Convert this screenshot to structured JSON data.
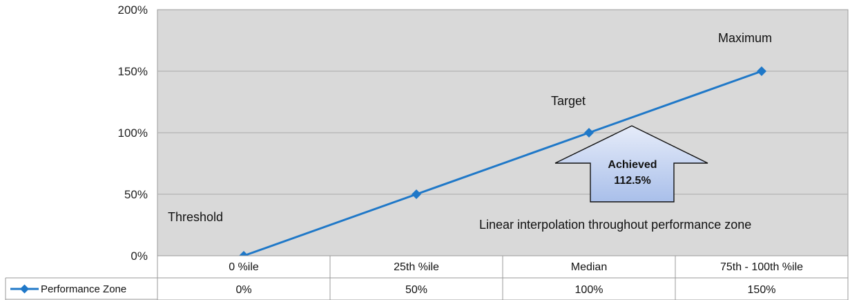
{
  "chart_data": {
    "type": "line",
    "categories": [
      "0 %ile",
      "25th %ile",
      "Median",
      "75th - 100th %ile"
    ],
    "series": [
      {
        "name": "Performance Zone",
        "values": [
          0,
          50,
          100,
          150
        ],
        "value_labels": [
          "0%",
          "50%",
          "100%",
          "150%"
        ],
        "color": "#1f78c8"
      }
    ],
    "y_ticks": [
      "0%",
      "50%",
      "100%",
      "150%",
      "200%"
    ],
    "y_tick_values": [
      0,
      50,
      100,
      150,
      200
    ],
    "ylim": [
      0,
      200
    ],
    "grid": true,
    "legend": "bottom-left data table",
    "annotations": {
      "threshold": "Threshold",
      "target": "Target",
      "maximum": "Maximum",
      "note": "Linear interpolation throughout performance zone",
      "arrow_line1": "Achieved",
      "arrow_line2": "112.5%"
    }
  },
  "colors": {
    "plot_background": "#d9d9d9",
    "grid": "#b3b3b3",
    "line": "#1f78c8",
    "arrow_fill_top": "#e6ecf9",
    "arrow_fill_bottom": "#a9bfea"
  }
}
